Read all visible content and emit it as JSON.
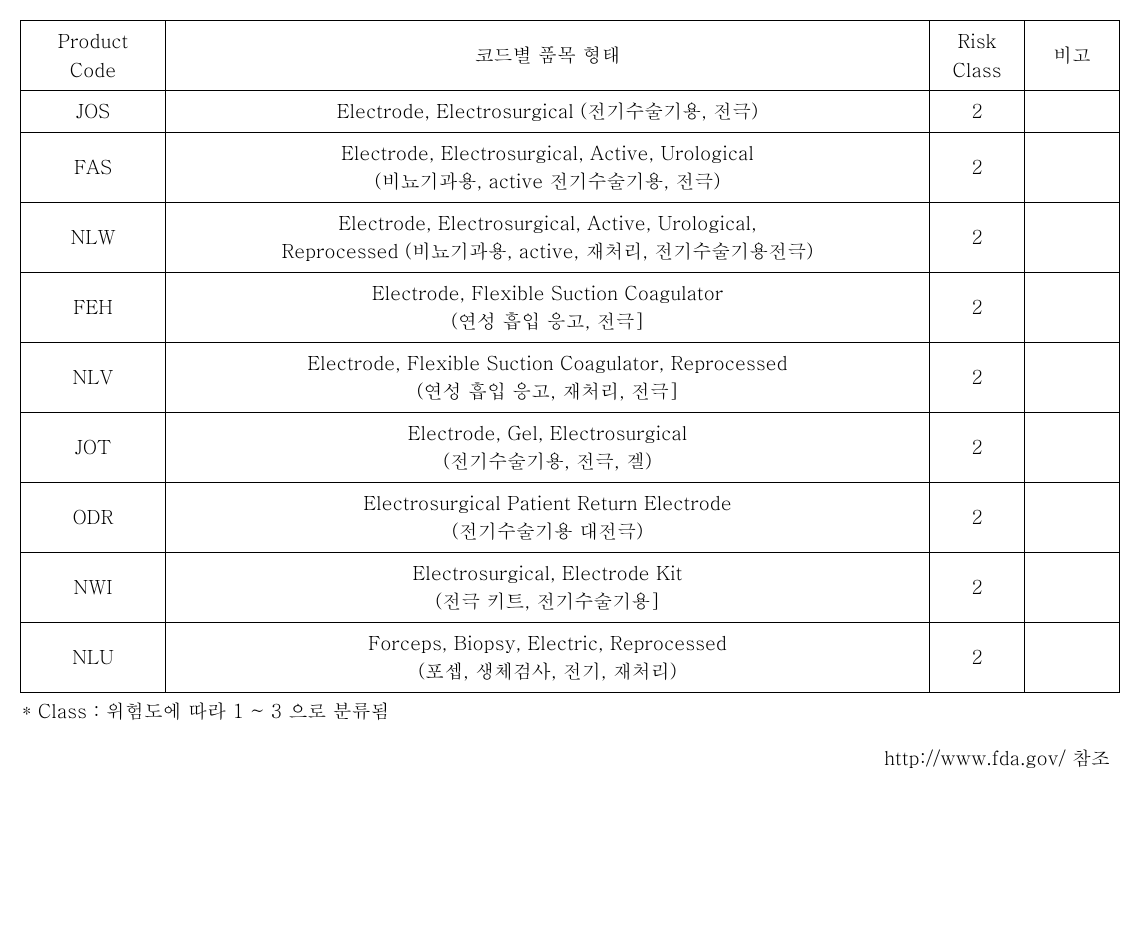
{
  "table": {
    "headers": {
      "product_code": "Product\nCode",
      "description": "코드별 품목 형태",
      "risk_class": "Risk\nClass",
      "note": "비고"
    },
    "rows": [
      {
        "code": "JOS",
        "desc": "Electrode, Electrosurgical (전기수술기용, 전극)",
        "risk": "2",
        "note": ""
      },
      {
        "code": "FAS",
        "desc": "Electrode, Electrosurgical, Active, Urological\n(비뇨기과용, active 전기수술기용, 전극)",
        "risk": "2",
        "note": ""
      },
      {
        "code": "NLW",
        "desc": "Electrode, Electrosurgical, Active, Urological,\nReprocessed (비뇨기과용, active, 재처리, 전기수술기용전극)",
        "risk": "2",
        "note": ""
      },
      {
        "code": "FEH",
        "desc": "Electrode, Flexible Suction Coagulator\n(연성 흡입 응고, 전극]",
        "risk": "2",
        "note": ""
      },
      {
        "code": "NLV",
        "desc": "Electrode, Flexible Suction Coagulator, Reprocessed\n(연성 흡입 응고, 재처리, 전극]",
        "risk": "2",
        "note": ""
      },
      {
        "code": "JOT",
        "desc": "Electrode, Gel, Electrosurgical\n(전기수술기용, 전극, 겔)",
        "risk": "2",
        "note": ""
      },
      {
        "code": "ODR",
        "desc": "Electrosurgical Patient Return Electrode\n(전기수술기용 대전극)",
        "risk": "2",
        "note": ""
      },
      {
        "code": "NWI",
        "desc": "Electrosurgical, Electrode Kit\n(전극 키트, 전기수술기용]",
        "risk": "2",
        "note": ""
      },
      {
        "code": "NLU",
        "desc": "Forceps, Biopsy, Electric, Reprocessed\n(포셉, 생체검사, 전기, 재처리)",
        "risk": "2",
        "note": ""
      }
    ]
  },
  "footnote": "* Class : 위험도에 따라 1 ~ 3 으로 분류됨",
  "source": "http://www.fda.gov/ 참조",
  "styling": {
    "border_color": "#000000",
    "background_color": "#ffffff",
    "text_color": "#000000",
    "font_size": 19,
    "col_widths": {
      "code": 145,
      "risk": 95,
      "note": 95
    }
  }
}
